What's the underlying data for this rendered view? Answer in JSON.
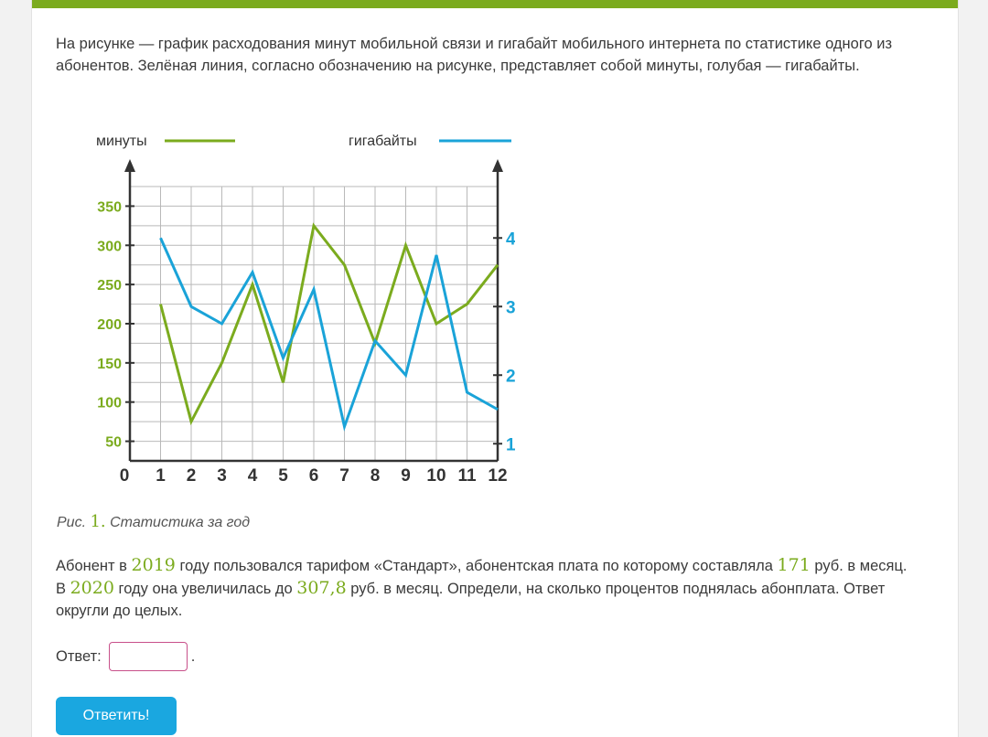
{
  "intro": "На рисунке — график расходования минут мобильной связи и гигабайт мобильного интернета по статистике одного из абонентов. Зелёная линия, согласно обозначению на рисунке, представляет собой минуты, голубая — гигабайты.",
  "chart_data": {
    "type": "line",
    "x": [
      1,
      2,
      3,
      4,
      5,
      6,
      7,
      8,
      9,
      10,
      11,
      12
    ],
    "x_ticks": [
      "0",
      "1",
      "2",
      "3",
      "4",
      "5",
      "6",
      "7",
      "8",
      "9",
      "10",
      "11",
      "12"
    ],
    "series": [
      {
        "name": "минуты",
        "axis": "left",
        "color": "#7bab1e",
        "values": [
          225,
          75,
          150,
          250,
          125,
          325,
          275,
          175,
          300,
          200,
          225,
          275
        ]
      },
      {
        "name": "гигабайты",
        "axis": "right",
        "color": "#1aa3d8",
        "values": [
          4,
          3,
          2.75,
          3.5,
          2.25,
          3.25,
          1.25,
          2.5,
          2,
          3.75,
          1.75,
          1.5
        ]
      }
    ],
    "left_axis": {
      "ticks": [
        50,
        100,
        150,
        200,
        250,
        300,
        350
      ],
      "range": [
        25,
        375
      ]
    },
    "right_axis": {
      "ticks": [
        1,
        2,
        3,
        4
      ],
      "range": [
        0.75,
        4.75
      ]
    },
    "legend": [
      {
        "label": "минуты",
        "color": "#7bab1e"
      },
      {
        "label": "гигабайты",
        "color": "#1aa3d8"
      }
    ],
    "grid": true
  },
  "caption": {
    "prefix": "Рис.",
    "number": "1.",
    "text": "Статистика за год"
  },
  "task": {
    "p1": "Абонент в ",
    "year1": "2019",
    "p2": " году пользовался тарифом «Стандарт», абонентская плата по которому составляла ",
    "fee1": "171",
    "p3": " руб. в месяц. В ",
    "year2": "2020",
    "p4": " году она увеличилась до ",
    "fee2": "307,8",
    "p5": " руб. в месяц. Определи, на сколько процентов поднялась абонплата. Ответ округли до целых."
  },
  "answer": {
    "label": "Ответ:",
    "value": "",
    "suffix": "."
  },
  "submit_label": "Ответить!",
  "colors": {
    "accent_green": "#7bab1e",
    "accent_blue": "#1aa3d8",
    "button": "#1aa7e0",
    "input_border": "#c8508a"
  }
}
